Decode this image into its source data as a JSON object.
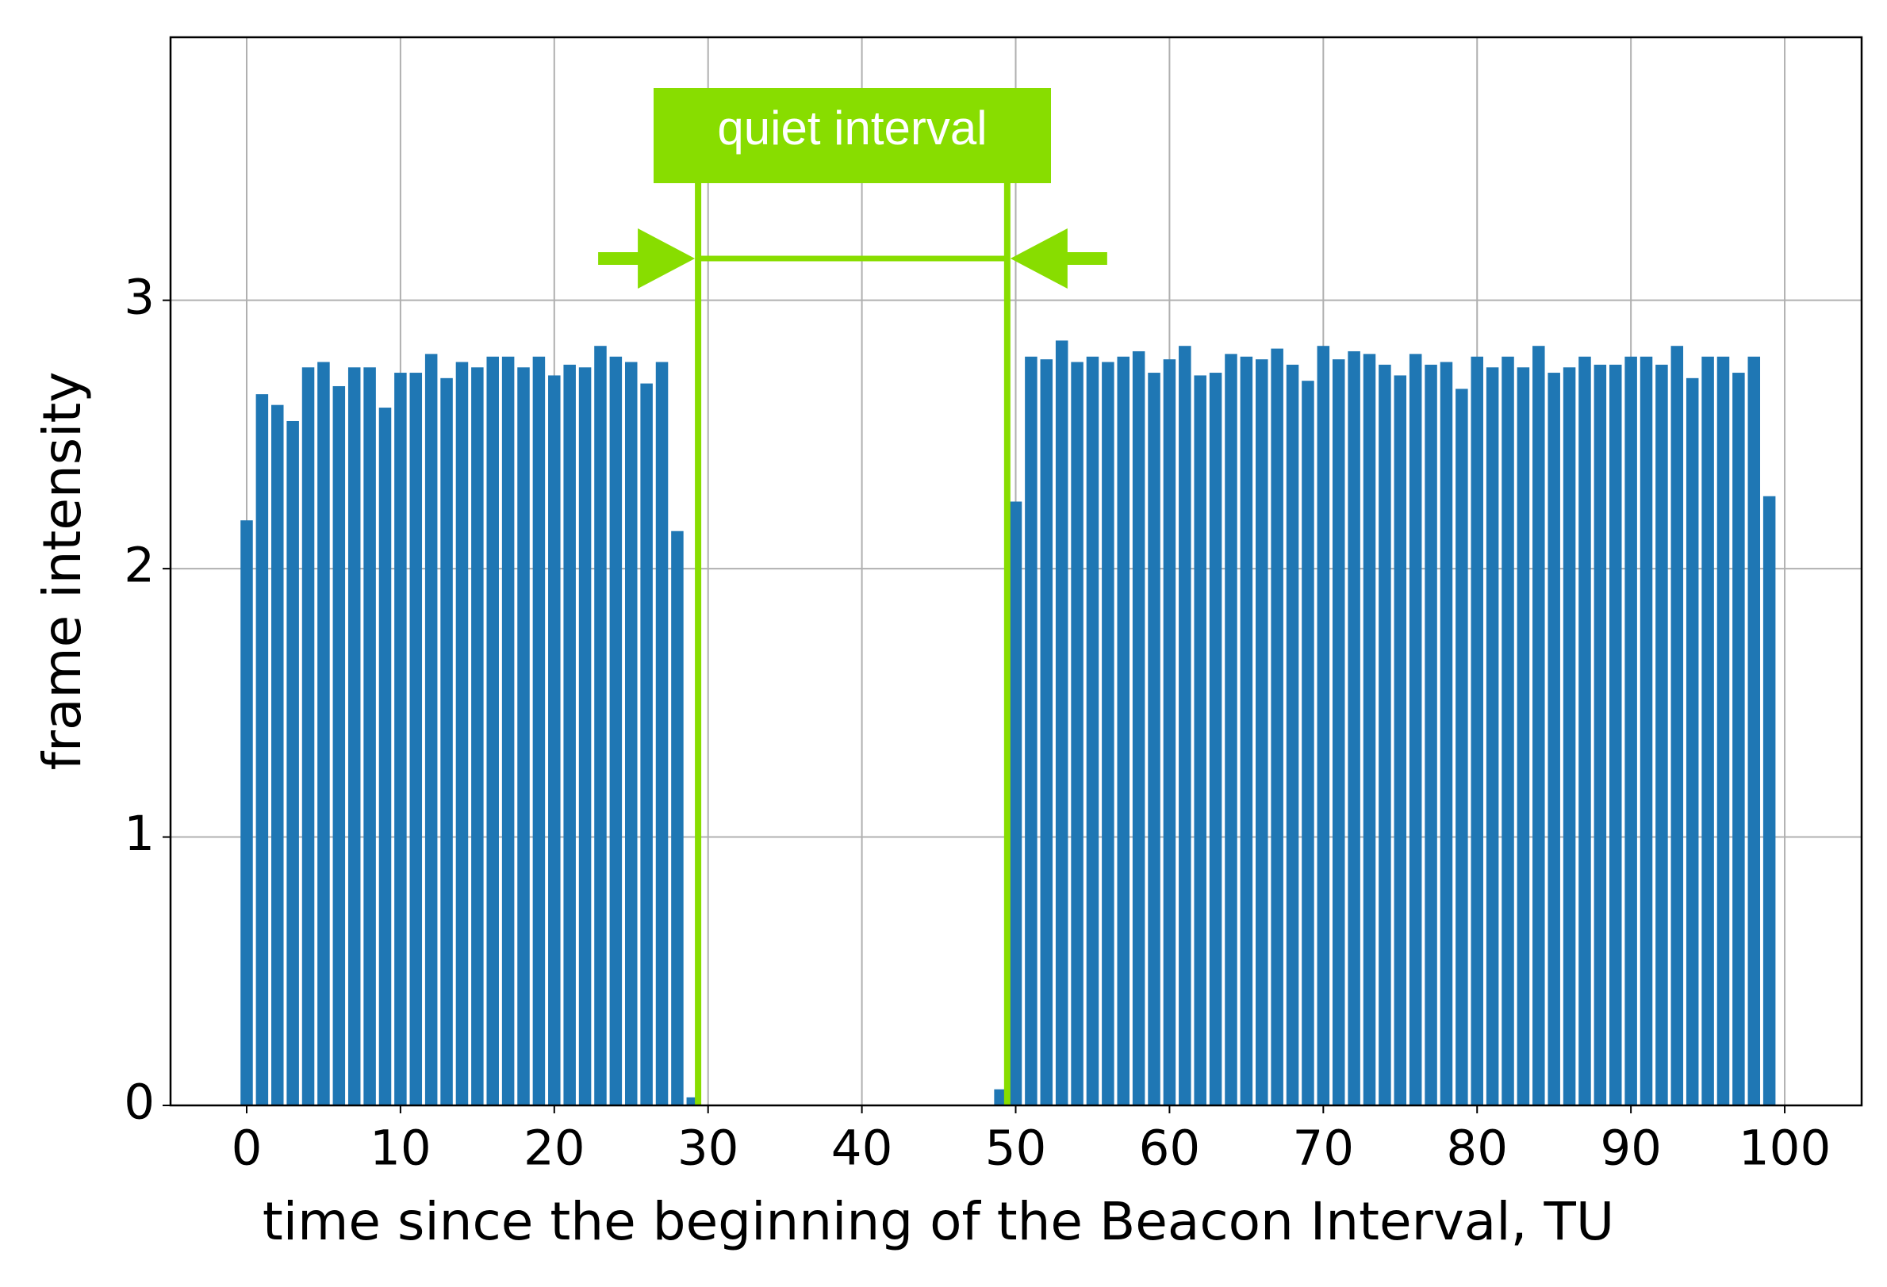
{
  "chart_data": {
    "type": "bar",
    "xlabel": "time since the beginning of the Beacon Interval, TU",
    "ylabel": "frame intensity",
    "x": [
      0,
      1,
      2,
      3,
      4,
      5,
      6,
      7,
      8,
      9,
      10,
      11,
      12,
      13,
      14,
      15,
      16,
      17,
      18,
      19,
      20,
      21,
      22,
      23,
      24,
      25,
      26,
      27,
      28,
      29,
      30,
      31,
      32,
      33,
      34,
      35,
      36,
      37,
      38,
      39,
      40,
      41,
      42,
      43,
      44,
      45,
      46,
      47,
      48,
      49,
      50,
      51,
      52,
      53,
      54,
      55,
      56,
      57,
      58,
      59,
      60,
      61,
      62,
      63,
      64,
      65,
      66,
      67,
      68,
      69,
      70,
      71,
      72,
      73,
      74,
      75,
      76,
      77,
      78,
      79,
      80,
      81,
      82,
      83,
      84,
      85,
      86,
      87,
      88,
      89,
      90,
      91,
      92,
      93,
      94,
      95,
      96,
      97,
      98,
      99
    ],
    "values": [
      2.18,
      2.65,
      2.61,
      2.55,
      2.75,
      2.77,
      2.68,
      2.75,
      2.75,
      2.6,
      2.73,
      2.73,
      2.8,
      2.71,
      2.77,
      2.75,
      2.79,
      2.79,
      2.75,
      2.79,
      2.72,
      2.76,
      2.75,
      2.83,
      2.79,
      2.77,
      2.69,
      2.77,
      2.14,
      0.03,
      0,
      0,
      0,
      0,
      0,
      0,
      0,
      0,
      0,
      0,
      0,
      0,
      0,
      0,
      0,
      0,
      0,
      0,
      0,
      0.06,
      2.25,
      2.79,
      2.78,
      2.85,
      2.77,
      2.79,
      2.77,
      2.79,
      2.81,
      2.73,
      2.78,
      2.83,
      2.72,
      2.73,
      2.8,
      2.79,
      2.78,
      2.82,
      2.76,
      2.7,
      2.83,
      2.78,
      2.81,
      2.8,
      2.76,
      2.72,
      2.8,
      2.76,
      2.77,
      2.67,
      2.79,
      2.75,
      2.79,
      2.75,
      2.83,
      2.73,
      2.75,
      2.79,
      2.76,
      2.76,
      2.79,
      2.79,
      2.76,
      2.83,
      2.71,
      2.79,
      2.79,
      2.73,
      2.79,
      2.27
    ],
    "color": "#1f77b4",
    "bar_width": 0.8,
    "xlim": [
      -4.95,
      105
    ],
    "ylim": [
      0,
      3.98
    ],
    "xticks": [
      0,
      10,
      20,
      30,
      40,
      50,
      60,
      70,
      80,
      90,
      100
    ],
    "yticks": [
      0,
      1,
      2,
      3
    ],
    "grid": true,
    "annotation": {
      "text": "quiet interval",
      "x": [
        29.35,
        49.45
      ],
      "color": "#88dd00"
    }
  }
}
